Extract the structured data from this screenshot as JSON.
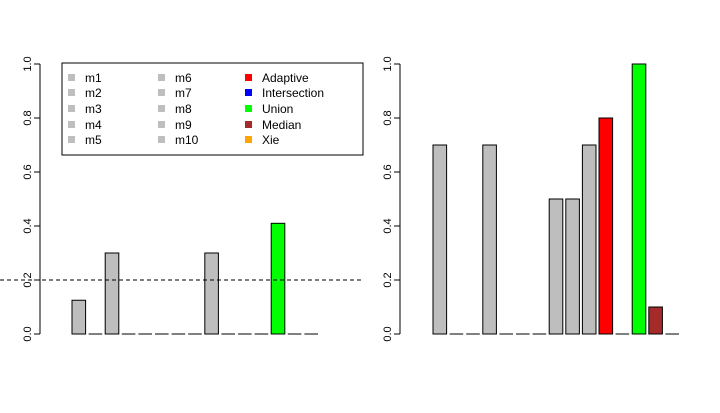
{
  "colors": {
    "model": "#bebebe",
    "Adaptive": "#ff0000",
    "Intersection": "#0000ff",
    "Union": "#00ff00",
    "Median": "#a52a2a",
    "Xie": "#ffa500"
  },
  "chart_data": [
    {
      "type": "bar",
      "categories": [
        "m1",
        "m2",
        "m3",
        "m4",
        "m5",
        "m6",
        "m7",
        "m8",
        "m9",
        "m10",
        "Adaptive",
        "Intersection",
        "Union",
        "Median",
        "Xie"
      ],
      "values": [
        0.125,
        0,
        0.3,
        0,
        0,
        0,
        0,
        0,
        0.3,
        0,
        0,
        0,
        0.41,
        0,
        0
      ],
      "ylim": [
        0,
        1
      ],
      "yticks": [
        "0.0",
        "0.2",
        "0.4",
        "0.6",
        "0.8",
        "1.0"
      ],
      "reference_line": 0.2,
      "grid": false,
      "legend": {
        "placement": "top",
        "entries": [
          "m1",
          "m2",
          "m3",
          "m4",
          "m5",
          "m6",
          "m7",
          "m8",
          "m9",
          "m10",
          "Adaptive",
          "Intersection",
          "Union",
          "Median",
          "Xie"
        ]
      }
    },
    {
      "type": "bar",
      "categories": [
        "m1",
        "m2",
        "m3",
        "m4",
        "m5",
        "m6",
        "m7",
        "m8",
        "m9",
        "m10",
        "Adaptive",
        "Intersection",
        "Union",
        "Median",
        "Xie"
      ],
      "values": [
        0.7,
        0,
        0,
        0.7,
        0,
        0,
        0,
        0.5,
        0.5,
        0.7,
        0.8,
        0,
        1.0,
        0.1,
        0
      ],
      "ylim": [
        0,
        1
      ],
      "yticks": [
        "0.0",
        "0.2",
        "0.4",
        "0.6",
        "0.8",
        "1.0"
      ],
      "grid": false
    }
  ]
}
